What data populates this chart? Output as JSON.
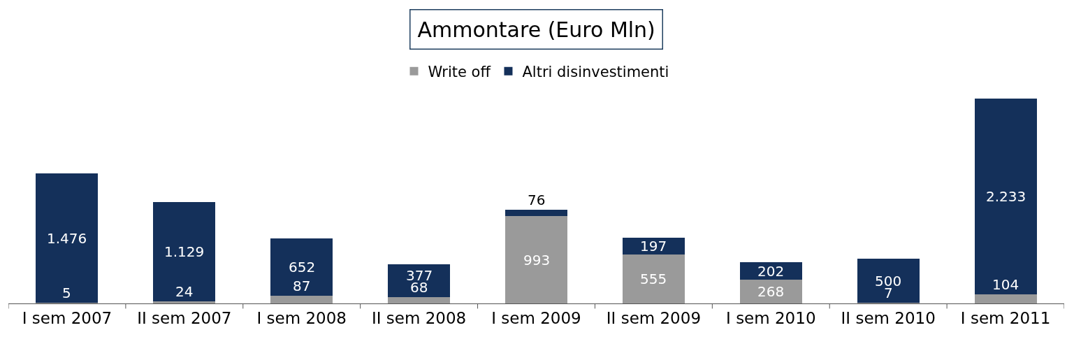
{
  "chart_data": {
    "type": "bar",
    "title": "Ammontare (Euro Mln)",
    "stacked": true,
    "legend": "top",
    "categories": [
      "I sem 2007",
      "II sem 2007",
      "I sem 2008",
      "II sem 2008",
      "I sem 2009",
      "II sem 2009",
      "I sem 2010",
      "II sem 2010",
      "I sem 2011"
    ],
    "series": [
      {
        "name": "Write off",
        "color": "#9a9a9a",
        "values": [
          5,
          24,
          87,
          68,
          993,
          555,
          268,
          7,
          104
        ],
        "value_labels": [
          "5",
          "24",
          "87",
          "68",
          "993",
          "555",
          "268",
          "7",
          "104"
        ]
      },
      {
        "name": "Altri disinvestimenti",
        "color": "#14305a",
        "values": [
          1476,
          1129,
          652,
          377,
          76,
          197,
          202,
          500,
          2233
        ],
        "value_labels": [
          "1.476",
          "1.129",
          "652",
          "377",
          "76",
          "197",
          "202",
          "500",
          "2.233"
        ]
      }
    ]
  }
}
